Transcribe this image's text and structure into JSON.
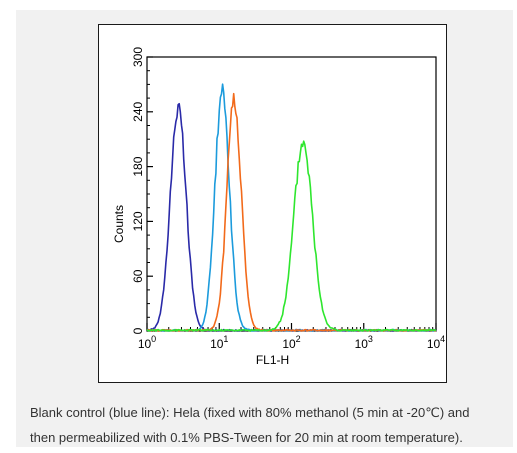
{
  "caption": {
    "line1": "Blank control (blue line): Hela (fixed with 80% methanol (5 min at -20℃) and",
    "line2": "then permeabilized with 0.1% PBS-Tween for 20 min at room temperature)."
  },
  "chart_data": {
    "type": "line",
    "title": "",
    "xlabel": "FL1-H",
    "ylabel": "Counts",
    "x_scale": "log",
    "xlim": [
      1,
      10000
    ],
    "ylim": [
      0,
      300
    ],
    "grid": false,
    "x_ticks": [
      {
        "value": 1,
        "base": "10",
        "exp": "0"
      },
      {
        "value": 10,
        "base": "10",
        "exp": "1"
      },
      {
        "value": 100,
        "base": "10",
        "exp": "2"
      },
      {
        "value": 1000,
        "base": "10",
        "exp": "3"
      },
      {
        "value": 10000,
        "base": "10",
        "exp": "4"
      }
    ],
    "y_ticks": [
      0,
      60,
      120,
      180,
      240,
      300
    ],
    "series": [
      {
        "color": "#2a2aa8",
        "peak_x": 2.7,
        "peak_y": 243,
        "spread_decades": 0.11
      },
      {
        "color": "#1c9bdc",
        "peak_x": 11,
        "peak_y": 262,
        "spread_decades": 0.1
      },
      {
        "color": "#f26a1b",
        "peak_x": 16,
        "peak_y": 251,
        "spread_decades": 0.1
      },
      {
        "color": "#2ee62e",
        "peak_x": 145,
        "peak_y": 207,
        "spread_decades": 0.13
      }
    ]
  }
}
